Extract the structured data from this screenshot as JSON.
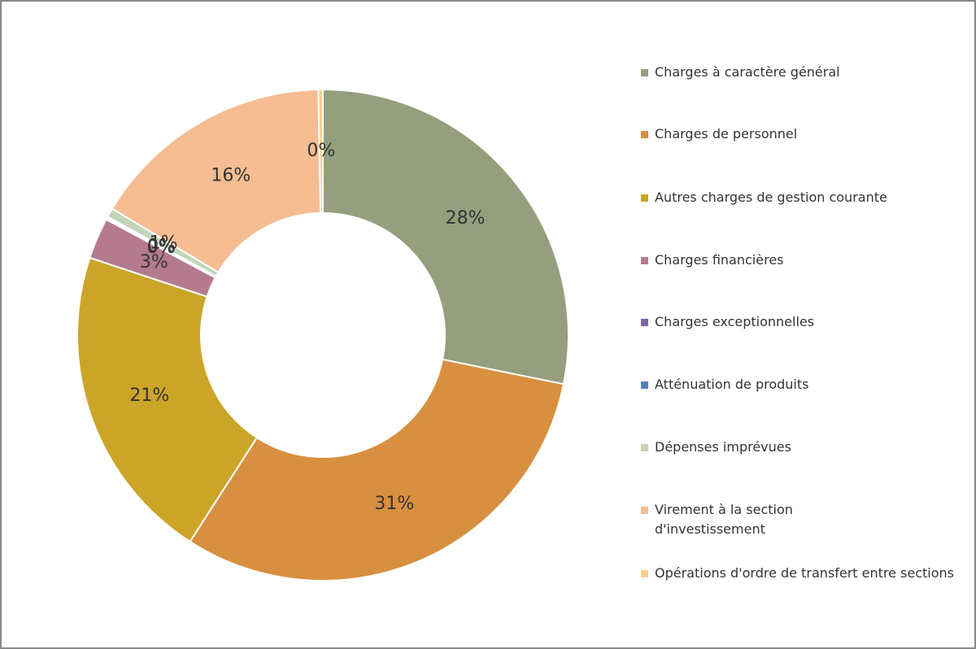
{
  "chart_data": {
    "type": "donut",
    "categories": [
      "Charges à caractère général",
      "Charges de personnel",
      "Autres charges de gestion courante",
      "Charges financières",
      "Charges exceptionnelles",
      "Atténuation de produits",
      "Dépenses imprévues",
      "Virement à la section d'investissement",
      "Opérations d'ordre de transfert entre sections"
    ],
    "values": [
      28.2,
      30.9,
      21.0,
      2.7,
      0.1,
      0.1,
      0.6,
      16.1,
      0.3
    ],
    "value_labels": [
      "28%",
      "31%",
      "21%",
      "3%",
      "0%",
      "0%",
      "1%",
      "16%",
      "0%"
    ],
    "colors": [
      "#959f7e",
      "#d88f3f",
      "#cba528",
      "#b57a8e",
      "#8064a2",
      "#4f81bd",
      "#c3d4b8",
      "#f5bd91",
      "#f9d08a"
    ],
    "legend": "right"
  }
}
